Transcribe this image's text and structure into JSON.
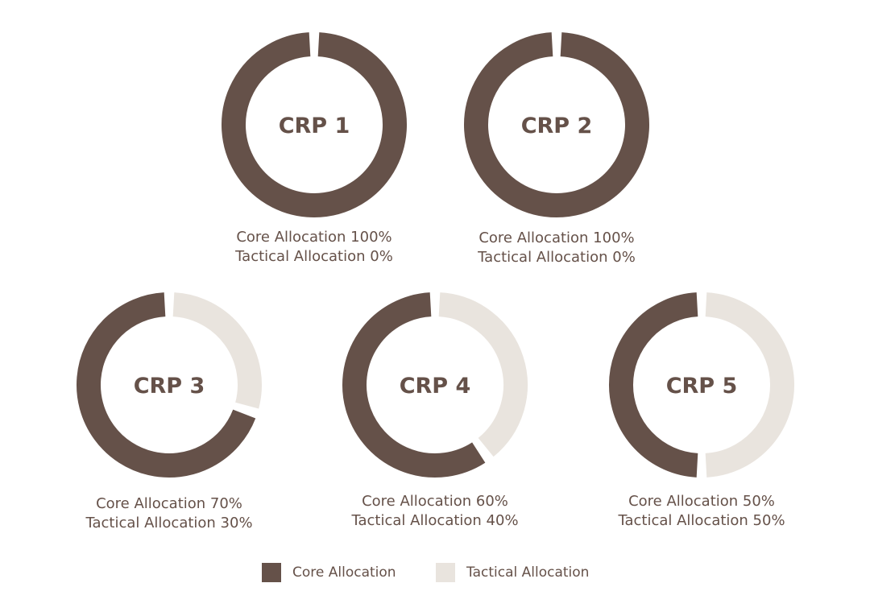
{
  "chart_data": {
    "type": "pie",
    "colors": {
      "core": "#655149",
      "tactical": "#E9E4DE"
    },
    "legend": {
      "placement": "bottom-center",
      "entries": [
        "Core Allocation",
        "Tactical Allocation"
      ]
    },
    "charts": [
      {
        "label": "CRP 1",
        "core": 100,
        "tactical": 0,
        "caption_core": "Core Allocation 100%",
        "caption_tactical": "Tactical Allocation 0%"
      },
      {
        "label": "CRP 2",
        "core": 100,
        "tactical": 0,
        "caption_core": "Core Allocation 100%",
        "caption_tactical": "Tactical Allocation 0%"
      },
      {
        "label": "CRP 3",
        "core": 70,
        "tactical": 30,
        "caption_core": "Core Allocation 70%",
        "caption_tactical": "Tactical Allocation 30%"
      },
      {
        "label": "CRP 4",
        "core": 60,
        "tactical": 40,
        "caption_core": "Core Allocation 60%",
        "caption_tactical": "Tactical Allocation 40%"
      },
      {
        "label": "CRP 5",
        "core": 50,
        "tactical": 50,
        "caption_core": "Core Allocation 50%",
        "caption_tactical": "Tactical Allocation 50%"
      }
    ]
  }
}
